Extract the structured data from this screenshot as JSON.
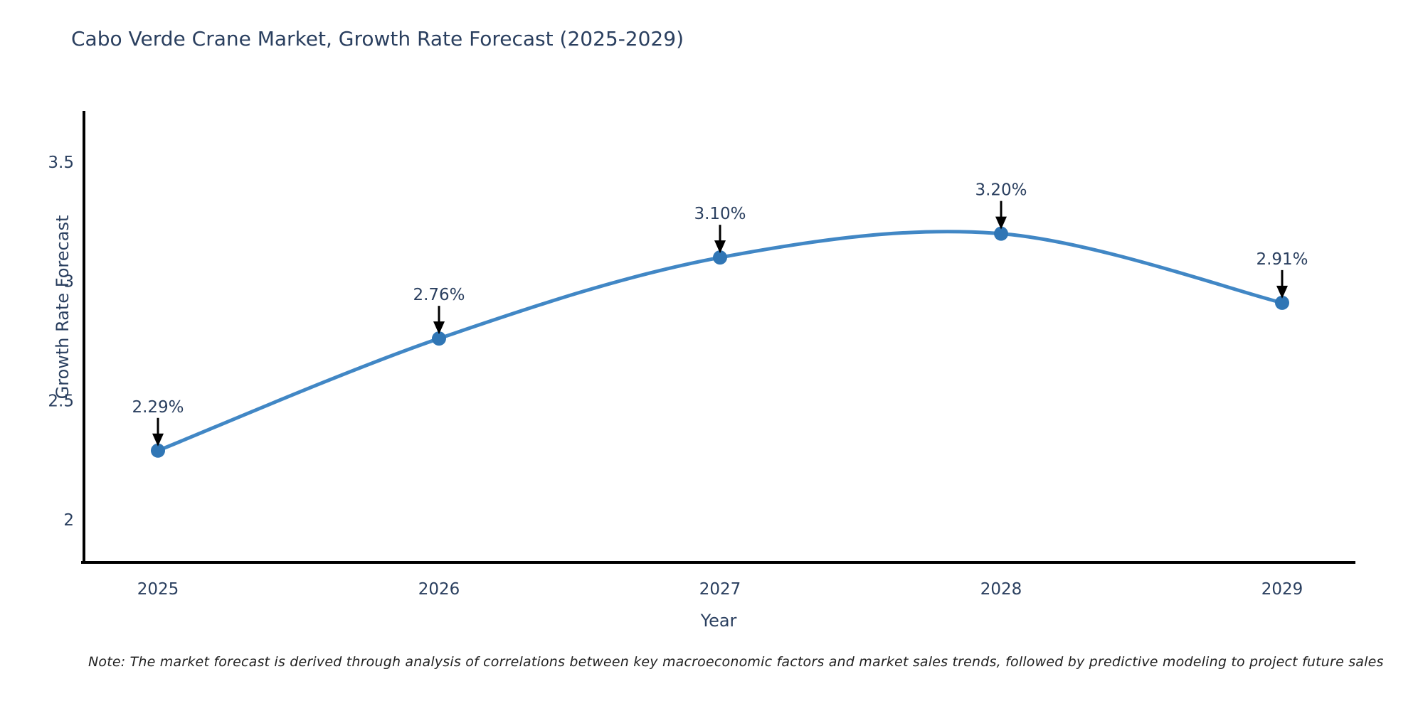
{
  "chart_data": {
    "type": "line",
    "title": "Cabo Verde Crane Market, Growth Rate Forecast (2025-2029)",
    "xlabel": "Year",
    "ylabel": "Growth Rate Forecast",
    "categories": [
      "2025",
      "2026",
      "2027",
      "2028",
      "2029"
    ],
    "series": [
      {
        "name": "Growth Rate Forecast",
        "values": [
          2.29,
          2.76,
          3.1,
          3.2,
          2.91
        ],
        "point_labels": [
          "2.29%",
          "2.76%",
          "3.10%",
          "3.20%",
          "2.91%"
        ]
      }
    ],
    "line_shape": "spline",
    "markers": true,
    "annotations_with_arrows": true,
    "yticks": [
      2,
      2.5,
      3,
      3.5
    ],
    "ylim": [
      1.81,
      3.72
    ],
    "grid": false,
    "legend": false,
    "colors": {
      "line": "#4187c5",
      "marker": "#3076b5",
      "arrow": "#000000",
      "axis_line": "#000000",
      "tick_text": "#2a3f5f",
      "title_text": "#2a3f5f"
    }
  },
  "note": {
    "text": "Note: The market forecast is derived through analysis of correlations between key macroeconomic factors and market sales trends, followed by predictive modeling to project future sales"
  }
}
